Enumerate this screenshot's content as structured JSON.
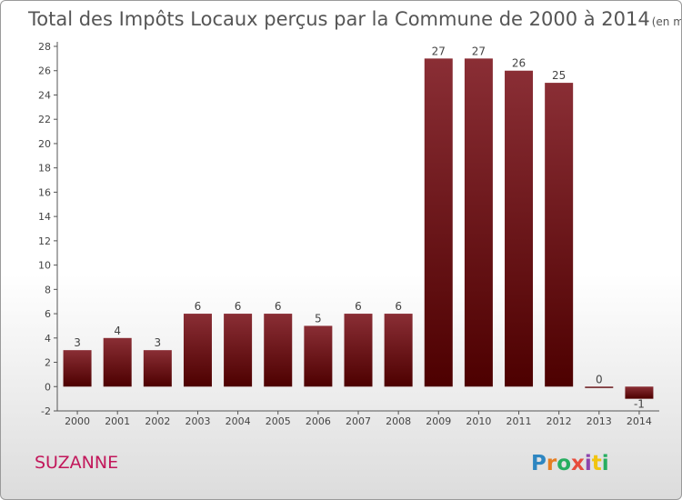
{
  "chart_data": {
    "type": "bar",
    "title": "Total des Impôts Locaux perçus par la Commune de 2000 à 2014",
    "unit": "(en milliers d'€)",
    "categories": [
      "2000",
      "2001",
      "2002",
      "2003",
      "2004",
      "2005",
      "2006",
      "2007",
      "2008",
      "2009",
      "2010",
      "2011",
      "2012",
      "2013",
      "2014"
    ],
    "values": [
      3,
      4,
      3,
      6,
      6,
      6,
      5,
      6,
      6,
      27,
      27,
      26,
      25,
      0,
      -1
    ],
    "value_labels": [
      "3",
      "4",
      "3",
      "6",
      "6",
      "6",
      "5",
      "6",
      "6",
      "27",
      "27",
      "26",
      "25",
      "0",
      "-1"
    ],
    "yticks": [
      "-2",
      "0",
      "2",
      "4",
      "6",
      "8",
      "10",
      "12",
      "14",
      "16",
      "18",
      "20",
      "22",
      "24",
      "26",
      "28"
    ],
    "ylim": [
      -2,
      28
    ],
    "xlabel": "",
    "ylabel": "",
    "grid": false
  },
  "commune": "SUZANNE",
  "brand": {
    "letters": [
      "P",
      "r",
      "o",
      "x",
      "i",
      "t",
      "i"
    ],
    "colors": [
      "#2e86c1",
      "#e67e22",
      "#27ae60",
      "#e74c3c",
      "#8e44ad",
      "#f1c40f",
      "#27ae60"
    ]
  },
  "colors": {
    "bar_top": "#8a2e35",
    "bar_bottom": "#4d0000",
    "axis": "#555555"
  }
}
